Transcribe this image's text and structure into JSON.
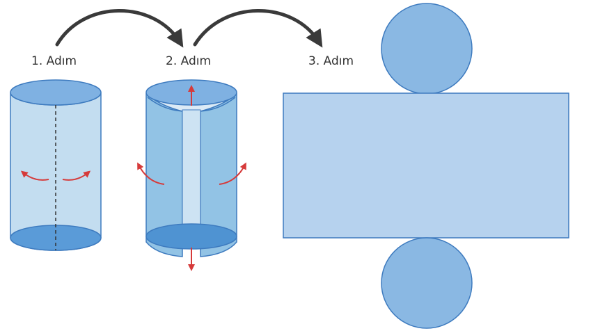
{
  "steps": [
    {
      "label": "1. Adım"
    },
    {
      "label": "2. Adım"
    },
    {
      "label": "3. Adım"
    }
  ],
  "colors": {
    "outline": "#3e7bbf",
    "surface_light": "#c3ddf0",
    "surface_mid": "#92c3e5",
    "face_dark": "#5a9bd8",
    "face_top": "#7fb1e2",
    "net_circle": "#8ab8e3",
    "net_rect": "#b6d2ee",
    "red_arrow": "#d63a3a",
    "curved_arrow": "#3a3a3a"
  },
  "icons": {
    "step_arrow": "curved-arrow-icon",
    "unroll_arrow": "red-arrow-icon"
  }
}
